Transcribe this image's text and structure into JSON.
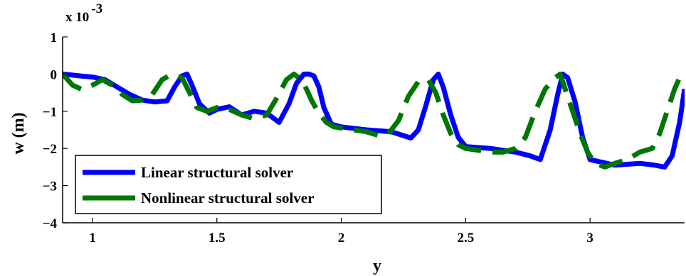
{
  "chart_data": {
    "type": "line",
    "title": "",
    "xlabel": "y",
    "ylabel": "w (m)",
    "y_multiplier": "x 10",
    "y_multiplier_exponent": "-3",
    "xlim": [
      0.88,
      3.38
    ],
    "ylim": [
      -4,
      1
    ],
    "x_ticks": [
      1,
      1.5,
      2,
      2.5,
      3
    ],
    "x_tick_labels": [
      "1",
      "1.5",
      "2",
      "2.5",
      "3"
    ],
    "y_ticks": [
      1,
      0,
      -1,
      -2,
      -3,
      -4
    ],
    "y_tick_labels": [
      "1",
      "0",
      "−1",
      "−2",
      "−3",
      "−4"
    ],
    "grid": false,
    "legend_position": "bottom-left",
    "series": [
      {
        "name": "Linear structural solver",
        "color": "#0000ff",
        "style": "solid",
        "x": [
          0.88,
          0.95,
          1.0,
          1.05,
          1.1,
          1.15,
          1.2,
          1.25,
          1.3,
          1.33,
          1.36,
          1.38,
          1.4,
          1.43,
          1.47,
          1.5,
          1.55,
          1.6,
          1.65,
          1.7,
          1.75,
          1.79,
          1.82,
          1.85,
          1.87,
          1.89,
          1.91,
          1.93,
          1.96,
          2.0,
          2.1,
          2.2,
          2.28,
          2.31,
          2.34,
          2.37,
          2.39,
          2.41,
          2.44,
          2.47,
          2.5,
          2.6,
          2.7,
          2.76,
          2.8,
          2.84,
          2.87,
          2.89,
          2.91,
          2.94,
          2.97,
          3.0,
          3.1,
          3.2,
          3.26,
          3.3,
          3.33,
          3.36,
          3.38
        ],
        "y": [
          0,
          -0.05,
          -0.08,
          -0.15,
          -0.35,
          -0.55,
          -0.7,
          -0.75,
          -0.72,
          -0.35,
          -0.05,
          0.0,
          -0.3,
          -0.8,
          -1.05,
          -0.95,
          -0.88,
          -1.1,
          -1.0,
          -1.05,
          -1.3,
          -0.8,
          -0.25,
          0.0,
          0.0,
          -0.05,
          -0.35,
          -0.9,
          -1.35,
          -1.42,
          -1.5,
          -1.55,
          -1.72,
          -1.5,
          -0.85,
          -0.15,
          0.0,
          -0.35,
          -1.1,
          -1.7,
          -1.95,
          -2.0,
          -2.1,
          -2.2,
          -2.3,
          -1.5,
          -0.55,
          0.0,
          -0.1,
          -0.75,
          -1.7,
          -2.3,
          -2.45,
          -2.4,
          -2.45,
          -2.5,
          -2.2,
          -1.3,
          -0.4
        ]
      },
      {
        "name": "Nonlinear structural solver",
        "color": "#007700",
        "style": "dashed",
        "x": [
          0.88,
          0.92,
          0.96,
          1.0,
          1.04,
          1.08,
          1.12,
          1.16,
          1.2,
          1.24,
          1.28,
          1.32,
          1.36,
          1.39,
          1.42,
          1.46,
          1.5,
          1.55,
          1.6,
          1.65,
          1.7,
          1.74,
          1.78,
          1.81,
          1.84,
          1.86,
          1.88,
          1.91,
          1.94,
          1.97,
          2.0,
          2.05,
          2.1,
          2.15,
          2.19,
          2.23,
          2.27,
          2.31,
          2.35,
          2.38,
          2.41,
          2.44,
          2.47,
          2.5,
          2.55,
          2.6,
          2.65,
          2.7,
          2.74,
          2.78,
          2.82,
          2.86,
          2.88,
          2.9,
          2.93,
          2.96,
          2.99,
          3.02,
          3.06,
          3.1,
          3.15,
          3.2,
          3.25,
          3.28,
          3.31,
          3.34,
          3.36,
          3.38
        ],
        "y": [
          0,
          -0.3,
          -0.42,
          -0.3,
          -0.15,
          -0.3,
          -0.55,
          -0.72,
          -0.7,
          -0.55,
          -0.15,
          0.0,
          -0.1,
          -0.5,
          -0.9,
          -1.0,
          -0.9,
          -0.95,
          -1.1,
          -1.2,
          -1.1,
          -0.65,
          -0.15,
          0.0,
          -0.15,
          -0.4,
          -0.7,
          -1.05,
          -1.3,
          -1.42,
          -1.45,
          -1.5,
          -1.55,
          -1.65,
          -1.6,
          -1.25,
          -0.6,
          -0.2,
          -0.15,
          -0.5,
          -1.1,
          -1.6,
          -1.9,
          -2.0,
          -2.05,
          -2.1,
          -2.1,
          -2.0,
          -1.7,
          -1.0,
          -0.4,
          -0.1,
          0.0,
          -0.4,
          -1.0,
          -1.6,
          -2.1,
          -2.4,
          -2.5,
          -2.4,
          -2.3,
          -2.1,
          -2.0,
          -1.6,
          -1.0,
          -0.4,
          -0.1,
          0.0
        ]
      }
    ]
  }
}
